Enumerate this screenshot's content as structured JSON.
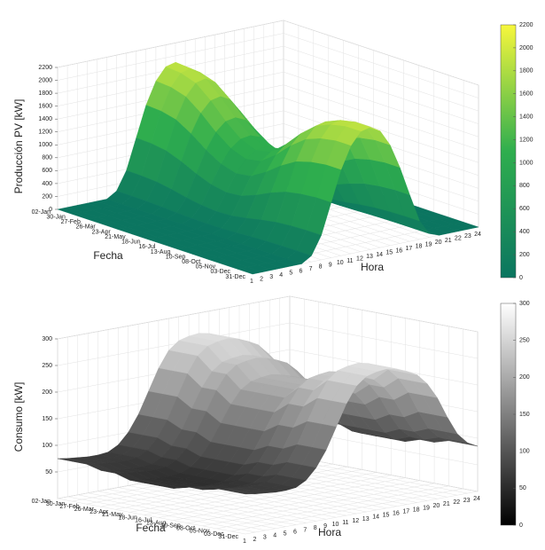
{
  "chart_data": [
    {
      "type": "surface",
      "xlabel": "Hora",
      "ylabel": "Fecha",
      "zlabel": "Producción PV [kW]",
      "x": [
        1,
        2,
        3,
        4,
        5,
        6,
        7,
        8,
        9,
        10,
        11,
        12,
        13,
        14,
        15,
        16,
        17,
        18,
        19,
        20,
        21,
        22,
        23,
        24
      ],
      "xlim": [
        1,
        24
      ],
      "y": [
        "02-Jan",
        "30-Jan",
        "27-Feb",
        "26-Mar",
        "23-Apr",
        "21-May",
        "18-Jun",
        "16-Jul",
        "13-Aug",
        "10-Sep",
        "08-Oct",
        "05-Nov",
        "03-Dec",
        "31-Dec"
      ],
      "values": [
        [
          0,
          0,
          0,
          0,
          0,
          0,
          95,
          380,
          855,
          1330,
          1672,
          1862,
          1900,
          1805,
          1558,
          1178,
          722,
          285,
          57,
          0,
          0,
          0,
          0,
          0
        ],
        [
          0,
          0,
          0,
          0,
          0,
          0,
          94,
          376,
          846,
          1316,
          1654,
          1842,
          1880,
          1786,
          1542,
          1166,
          714,
          282,
          56,
          0,
          0,
          0,
          0,
          0
        ],
        [
          0,
          0,
          0,
          0,
          0,
          0,
          90,
          360,
          810,
          1260,
          1584,
          1764,
          1800,
          1710,
          1476,
          1116,
          684,
          270,
          54,
          0,
          0,
          0,
          0,
          0
        ],
        [
          0,
          0,
          0,
          0,
          0,
          0,
          80,
          320,
          720,
          1120,
          1408,
          1568,
          1600,
          1520,
          1312,
          992,
          608,
          240,
          48,
          0,
          0,
          0,
          0,
          0
        ],
        [
          0,
          0,
          0,
          0,
          0,
          0,
          68,
          270,
          608,
          945,
          1188,
          1323,
          1350,
          1283,
          1107,
          837,
          513,
          203,
          41,
          0,
          0,
          0,
          0,
          0
        ],
        [
          0,
          0,
          0,
          0,
          0,
          0,
          58,
          230,
          518,
          805,
          1012,
          1127,
          1150,
          1093,
          943,
          713,
          437,
          173,
          35,
          0,
          0,
          0,
          0,
          0
        ],
        [
          0,
          0,
          0,
          0,
          0,
          0,
          53,
          210,
          473,
          735,
          924,
          1029,
          1050,
          998,
          861,
          651,
          399,
          158,
          32,
          0,
          0,
          0,
          0,
          0
        ],
        [
          0,
          0,
          0,
          0,
          0,
          0,
          55,
          220,
          495,
          770,
          968,
          1078,
          1100,
          1045,
          902,
          682,
          418,
          165,
          33,
          0,
          0,
          0,
          0,
          0
        ],
        [
          0,
          0,
          0,
          0,
          0,
          0,
          65,
          260,
          585,
          910,
          1144,
          1274,
          1300,
          1235,
          1066,
          806,
          494,
          195,
          39,
          0,
          0,
          0,
          0,
          0
        ],
        [
          0,
          0,
          0,
          0,
          0,
          0,
          78,
          310,
          698,
          1085,
          1364,
          1519,
          1550,
          1473,
          1271,
          961,
          589,
          233,
          47,
          0,
          0,
          0,
          0,
          0
        ],
        [
          0,
          0,
          0,
          0,
          0,
          0,
          88,
          350,
          788,
          1225,
          1540,
          1715,
          1750,
          1663,
          1435,
          1085,
          665,
          263,
          53,
          0,
          0,
          0,
          0,
          0
        ],
        [
          0,
          0,
          0,
          0,
          0,
          0,
          93,
          370,
          833,
          1295,
          1628,
          1813,
          1850,
          1758,
          1517,
          1147,
          703,
          278,
          56,
          0,
          0,
          0,
          0,
          0
        ],
        [
          0,
          0,
          0,
          0,
          0,
          0,
          95,
          380,
          855,
          1330,
          1672,
          1862,
          1900,
          1805,
          1558,
          1178,
          722,
          285,
          57,
          0,
          0,
          0,
          0,
          0
        ],
        [
          0,
          0,
          0,
          0,
          0,
          0,
          95,
          380,
          855,
          1330,
          1672,
          1862,
          1900,
          1805,
          1558,
          1178,
          722,
          285,
          57,
          0,
          0,
          0,
          0,
          0
        ]
      ],
      "zlim": [
        0,
        2200
      ],
      "zticks": [
        0,
        200,
        400,
        600,
        800,
        1000,
        1200,
        1400,
        1600,
        1800,
        2000,
        2200
      ],
      "clim": [
        0,
        2200
      ],
      "cticks": [
        0,
        200,
        400,
        600,
        800,
        1000,
        1200,
        1400,
        1600,
        1800,
        2000,
        2200
      ],
      "colormap": [
        "#0b7560",
        "#2fae4e",
        "#f7f73c"
      ],
      "grid": true
    },
    {
      "type": "surface",
      "xlabel": "Hora",
      "ylabel": "Fecha",
      "zlabel": "Consumo [kW]",
      "x": [
        1,
        2,
        3,
        4,
        5,
        6,
        7,
        8,
        9,
        10,
        11,
        12,
        13,
        14,
        15,
        16,
        17,
        18,
        19,
        20,
        21,
        22,
        23,
        24
      ],
      "xlim": [
        1,
        24
      ],
      "y": [
        "02-Jan",
        "30-Jan",
        "27-Feb",
        "26-Mar",
        "23-Apr",
        "21-May",
        "18-Jun",
        "16-Jul",
        "13-Aug",
        "10-Sep",
        "08-Oct",
        "05-Nov",
        "03-Dec",
        "31-Dec"
      ],
      "values": [
        [
          75,
          72,
          70,
          68,
          68,
          70,
          80,
          100,
          130,
          170,
          210,
          240,
          255,
          260,
          262,
          258,
          250,
          240,
          220,
          190,
          150,
          115,
          95,
          85
        ],
        [
          75,
          72,
          70,
          68,
          68,
          70,
          80,
          100,
          130,
          170,
          210,
          240,
          255,
          260,
          262,
          258,
          250,
          240,
          220,
          190,
          150,
          115,
          95,
          85
        ],
        [
          75,
          72,
          70,
          68,
          68,
          70,
          80,
          100,
          130,
          170,
          210,
          240,
          255,
          260,
          262,
          258,
          250,
          240,
          220,
          190,
          150,
          115,
          95,
          85
        ],
        [
          68,
          65,
          63,
          61,
          61,
          63,
          72,
          90,
          117,
          153,
          189,
          216,
          230,
          234,
          236,
          232,
          225,
          216,
          198,
          171,
          135,
          104,
          86,
          77
        ],
        [
          68,
          65,
          63,
          61,
          61,
          63,
          72,
          90,
          117,
          153,
          189,
          216,
          230,
          234,
          236,
          232,
          225,
          216,
          198,
          171,
          135,
          104,
          86,
          77
        ],
        [
          60,
          58,
          56,
          54,
          54,
          56,
          64,
          80,
          104,
          136,
          168,
          192,
          204,
          208,
          210,
          206,
          200,
          192,
          176,
          152,
          120,
          92,
          76,
          68
        ],
        [
          60,
          58,
          56,
          54,
          54,
          56,
          64,
          80,
          104,
          136,
          168,
          192,
          204,
          208,
          210,
          206,
          200,
          192,
          176,
          152,
          120,
          92,
          76,
          68
        ],
        [
          60,
          58,
          56,
          54,
          54,
          56,
          64,
          80,
          104,
          136,
          168,
          192,
          204,
          208,
          210,
          206,
          200,
          192,
          176,
          152,
          120,
          92,
          76,
          68
        ],
        [
          60,
          58,
          56,
          54,
          54,
          56,
          64,
          80,
          104,
          136,
          168,
          192,
          204,
          208,
          210,
          206,
          200,
          192,
          176,
          152,
          120,
          92,
          76,
          68
        ],
        [
          68,
          65,
          63,
          61,
          61,
          63,
          72,
          90,
          117,
          153,
          189,
          216,
          230,
          234,
          236,
          232,
          225,
          216,
          198,
          171,
          135,
          104,
          86,
          77
        ],
        [
          68,
          65,
          63,
          61,
          61,
          63,
          72,
          90,
          117,
          153,
          189,
          216,
          230,
          234,
          236,
          232,
          225,
          216,
          198,
          171,
          135,
          104,
          86,
          77
        ],
        [
          75,
          72,
          70,
          68,
          68,
          70,
          80,
          100,
          130,
          170,
          210,
          240,
          255,
          260,
          262,
          258,
          250,
          240,
          220,
          190,
          150,
          115,
          95,
          85
        ],
        [
          75,
          72,
          70,
          68,
          68,
          70,
          80,
          100,
          130,
          170,
          210,
          240,
          255,
          260,
          262,
          258,
          250,
          240,
          220,
          190,
          150,
          115,
          95,
          85
        ],
        [
          75,
          72,
          70,
          68,
          68,
          70,
          80,
          100,
          130,
          170,
          210,
          240,
          255,
          260,
          262,
          258,
          250,
          240,
          220,
          190,
          150,
          115,
          95,
          85
        ]
      ],
      "zlim": [
        0,
        300
      ],
      "zticks": [
        50,
        100,
        150,
        200,
        250,
        300
      ],
      "clim": [
        0,
        300
      ],
      "cticks": [
        0,
        50,
        100,
        150,
        200,
        250,
        300
      ],
      "colormap": [
        "#000000",
        "#ffffff"
      ],
      "grid": true
    }
  ]
}
